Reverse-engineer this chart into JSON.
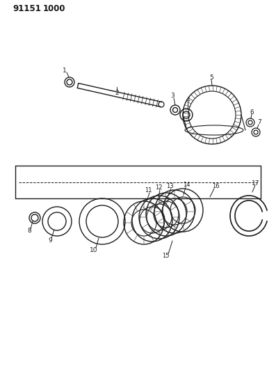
{
  "title1": "91151",
  "title2": "1000",
  "bg": "#ffffff",
  "lc": "#1a1a1a",
  "fig_w": 3.97,
  "fig_h": 5.33,
  "dpi": 100
}
